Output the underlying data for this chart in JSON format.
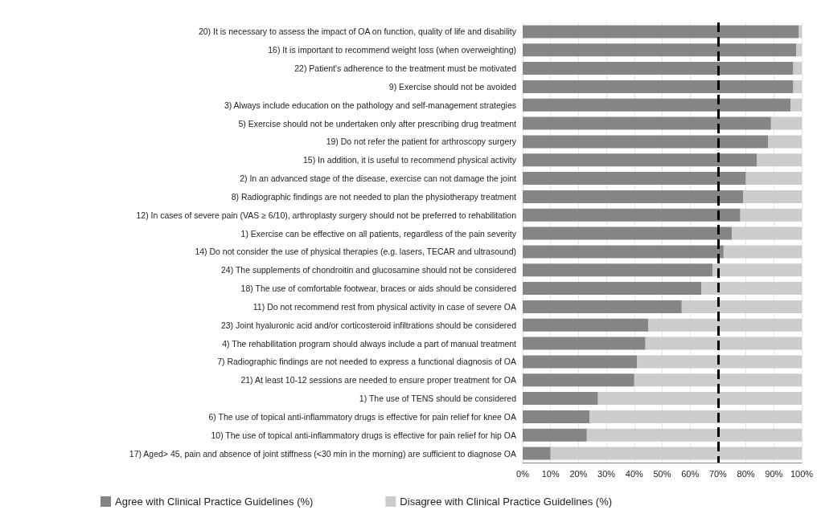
{
  "chart_data": {
    "type": "bar",
    "orientation": "horizontal",
    "stacked": true,
    "categories": [
      "20) It is necessary to assess the impact of OA on function, quality of life and disability",
      "16) It is important to recommend weight loss (when overweighting)",
      "22) Patient's adherence to the treatment must be motivated",
      "9) Exercise should not be avoided",
      "3) Always include education on the pathology and self-management strategies",
      "5) Exercise should not be undertaken only after prescribing drug treatment",
      "19) Do not refer the patient for arthroscopy surgery",
      "15) In addition, it is useful to recommend physical activity",
      "2) In an advanced stage of the disease, exercise can not damage the joint",
      "8) Radiographic findings are not needed to plan the physiotherapy treatment",
      "12) In cases of severe pain (VAS ≥ 6/10), arthroplasty surgery should not be preferred to rehabilitation",
      "1) Exercise can be effective on all patients, regardless of the pain severity",
      "14) Do not consider the use of physical therapies (e.g. lasers, TECAR and ultrasound)",
      "24) The supplements of chondroitin and glucosamine should not be considered",
      "18) The use of comfortable footwear, braces or aids should be considered",
      "11) Do not recommend rest from physical activity in case of severe OA",
      "23) Joint hyaluronic acid and/or corticosteroid infiltrations should be considered",
      "4) The rehabilitation program should always include a part of manual treatment",
      "7) Radiographic findings are not needed to express a functional diagnosis of OA",
      "21) At least 10-12 sessions are needed to ensure proper treatment for OA",
      "1) The use of TENS should be considered",
      "6) The use of topical anti-inflammatory drugs is effective for pain relief for knee OA",
      "10) The use of topical anti-inflammatory drugs is effective for pain relief for hip OA",
      "17) Aged> 45, pain and absence of joint stiffness (<30 min in the morning) are sufficient to diagnose OA"
    ],
    "series": [
      {
        "name": "Agree with Clinical Practice Guidelines (%)",
        "color": "#858585",
        "values": [
          99,
          98,
          97,
          97,
          96,
          89,
          88,
          84,
          80,
          79,
          78,
          75,
          72,
          68,
          64,
          57,
          45,
          44,
          41,
          40,
          27,
          24,
          23,
          10
        ]
      },
      {
        "name": "Disagree with Clinical Practice Guidelines (%)",
        "color": "#cccccc",
        "values": [
          1,
          2,
          3,
          3,
          4,
          11,
          12,
          16,
          20,
          21,
          22,
          25,
          28,
          32,
          36,
          43,
          55,
          56,
          59,
          60,
          73,
          76,
          77,
          90
        ]
      }
    ],
    "xlim": [
      0,
      100
    ],
    "xticks": [
      {
        "value": 0,
        "label": "0%"
      },
      {
        "value": 10,
        "label": "10%"
      },
      {
        "value": 20,
        "label": "20%"
      },
      {
        "value": 30,
        "label": "30%"
      },
      {
        "value": 40,
        "label": "40%"
      },
      {
        "value": 50,
        "label": "50%"
      },
      {
        "value": 60,
        "label": "60%"
      },
      {
        "value": 70,
        "label": "70%"
      },
      {
        "value": 80,
        "label": "80%"
      },
      {
        "value": 90,
        "label": "90%"
      },
      {
        "value": 100,
        "label": "100%"
      }
    ],
    "ref_lines": [
      {
        "axis": "x",
        "value": 70,
        "color": "#000000",
        "line_style": "dashed"
      }
    ],
    "grid": "x",
    "legend": "bottom"
  }
}
